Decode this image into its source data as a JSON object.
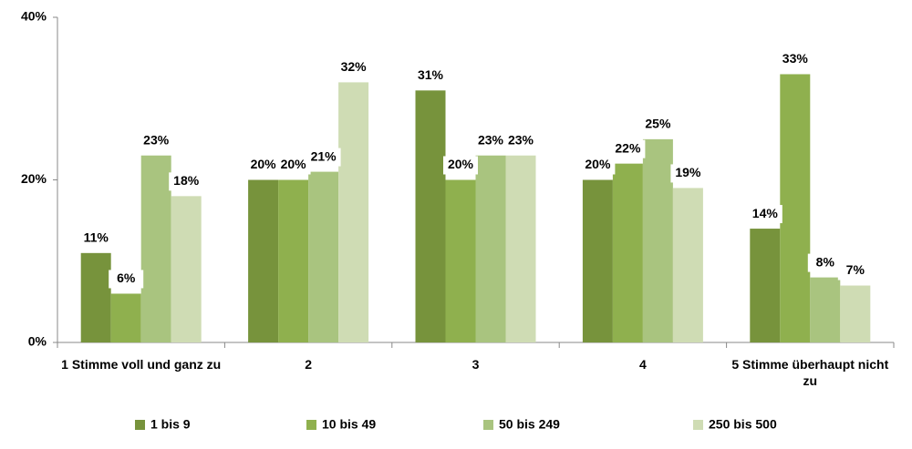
{
  "chart_data": {
    "type": "bar",
    "categories": [
      "1 Stimme voll und ganz zu",
      "2",
      "3",
      "4",
      "5 Stimme überhaupt nicht zu"
    ],
    "series": [
      {
        "name": "1 bis 9",
        "color": "#77933c",
        "values": [
          11,
          20,
          31,
          20,
          14
        ],
        "value_labels": [
          "11%",
          "20%",
          "31%",
          "20%",
          "14%"
        ]
      },
      {
        "name": "10 bis 49",
        "color": "#8fb04e",
        "values": [
          6,
          20,
          20,
          22,
          33
        ],
        "value_labels": [
          "6%",
          "20%",
          "20%",
          "22%",
          "33%"
        ]
      },
      {
        "name": "50 bis 249",
        "color": "#a9c47f",
        "values": [
          23,
          21,
          23,
          25,
          8
        ],
        "value_labels": [
          "23%",
          "21%",
          "23%",
          "25%",
          "8%"
        ]
      },
      {
        "name": "250 bis 500",
        "color": "#cfdcb4",
        "values": [
          18,
          32,
          23,
          19,
          7
        ],
        "value_labels": [
          "18%",
          "32%",
          "23%",
          "19%",
          "7%"
        ]
      }
    ],
    "ylim": [
      0,
      40
    ],
    "yticks": [
      {
        "value": 0,
        "label": "0%"
      },
      {
        "value": 20,
        "label": "20%"
      },
      {
        "value": 40,
        "label": "40%"
      }
    ],
    "grid": false,
    "legend": "bottom"
  }
}
